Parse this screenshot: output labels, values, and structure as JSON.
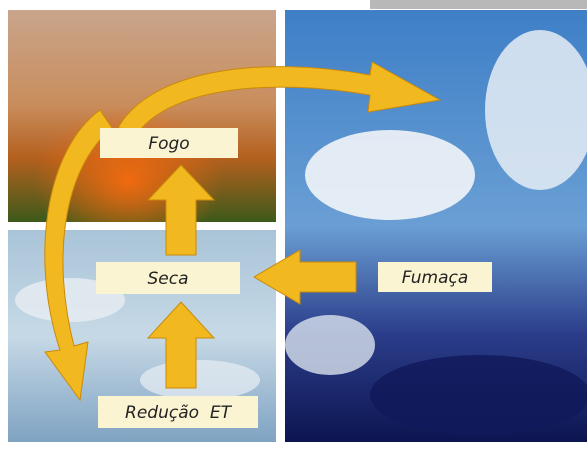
{
  "nodes": [
    {
      "label": "Fogo"
    },
    {
      "label": "Seca"
    },
    {
      "label": "Fumaça"
    },
    {
      "label": "Redução  ET"
    }
  ]
}
